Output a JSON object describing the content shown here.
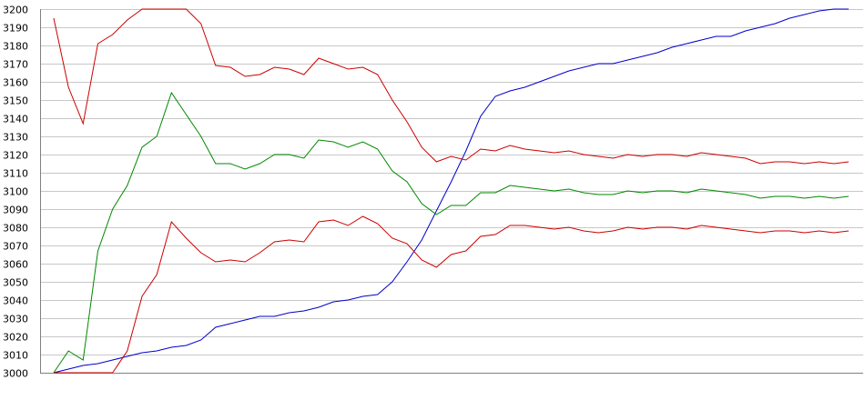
{
  "chart_data": {
    "type": "line",
    "title": "",
    "xlabel": "",
    "ylabel": "",
    "ylim": [
      3000,
      3200
    ],
    "yticks": [
      3000,
      3010,
      3020,
      3030,
      3040,
      3050,
      3060,
      3070,
      3080,
      3090,
      3100,
      3110,
      3120,
      3130,
      3140,
      3150,
      3160,
      3170,
      3180,
      3190,
      3200
    ],
    "grid": true,
    "legend": "none",
    "x": [
      0,
      1,
      2,
      3,
      4,
      5,
      6,
      7,
      8,
      9,
      10,
      11,
      12,
      13,
      14,
      15,
      16,
      17,
      18,
      19,
      20,
      21,
      22,
      23,
      24,
      25,
      26,
      27,
      28,
      29,
      30,
      31,
      32,
      33,
      34,
      35,
      36,
      37,
      38,
      39,
      40,
      41,
      42,
      43,
      44,
      45,
      46,
      47,
      48,
      49,
      50,
      51,
      52,
      53,
      54
    ],
    "series": [
      {
        "color": "#0000cc",
        "values": [
          3000,
          3002,
          3004,
          3005,
          3007,
          3009,
          3011,
          3012,
          3014,
          3015,
          3018,
          3025,
          3027,
          3029,
          3031,
          3031,
          3033,
          3034,
          3036,
          3039,
          3040,
          3042,
          3043,
          3050,
          3061,
          3073,
          3089,
          3105,
          3122,
          3141,
          3152,
          3155,
          3157,
          3160,
          3163,
          3166,
          3168,
          3170,
          3170,
          3172,
          3174,
          3176,
          3179,
          3181,
          3183,
          3185,
          3185,
          3188,
          3190,
          3192,
          3195,
          3197,
          3199,
          3200,
          3200
        ]
      },
      {
        "color": "#cc0000",
        "values": [
          3195,
          3157,
          3137,
          3181,
          3186,
          3194,
          3200,
          3200,
          3200,
          3200,
          3192,
          3169,
          3168,
          3163,
          3164,
          3168,
          3167,
          3164,
          3173,
          3170,
          3167,
          3168,
          3164,
          3150,
          3138,
          3124,
          3116,
          3119,
          3117,
          3123,
          3122,
          3125,
          3123,
          3122,
          3121,
          3122,
          3120,
          3119,
          3118,
          3120,
          3119,
          3120,
          3120,
          3119,
          3121,
          3120,
          3119,
          3118,
          3115,
          3116,
          3116,
          3115,
          3116,
          3115,
          3116
        ]
      },
      {
        "color": "#008800",
        "values": [
          3000,
          3012,
          3007,
          3067,
          3090,
          3103,
          3124,
          3130,
          3154,
          3142,
          3130,
          3115,
          3115,
          3112,
          3115,
          3120,
          3120,
          3118,
          3128,
          3127,
          3124,
          3127,
          3123,
          3111,
          3105,
          3093,
          3087,
          3092,
          3092,
          3099,
          3099,
          3103,
          3102,
          3101,
          3100,
          3101,
          3099,
          3098,
          3098,
          3100,
          3099,
          3100,
          3100,
          3099,
          3101,
          3100,
          3099,
          3098,
          3096,
          3097,
          3097,
          3096,
          3097,
          3096,
          3097
        ]
      },
      {
        "color": "#cc0000",
        "values": [
          3000,
          3000,
          3000,
          3000,
          3000,
          3012,
          3042,
          3054,
          3083,
          3074,
          3066,
          3061,
          3062,
          3061,
          3066,
          3072,
          3073,
          3072,
          3083,
          3084,
          3081,
          3086,
          3082,
          3074,
          3071,
          3062,
          3058,
          3065,
          3067,
          3075,
          3076,
          3081,
          3081,
          3080,
          3079,
          3080,
          3078,
          3077,
          3078,
          3080,
          3079,
          3080,
          3080,
          3079,
          3081,
          3080,
          3079,
          3078,
          3077,
          3078,
          3078,
          3077,
          3078,
          3077,
          3078
        ]
      }
    ]
  }
}
